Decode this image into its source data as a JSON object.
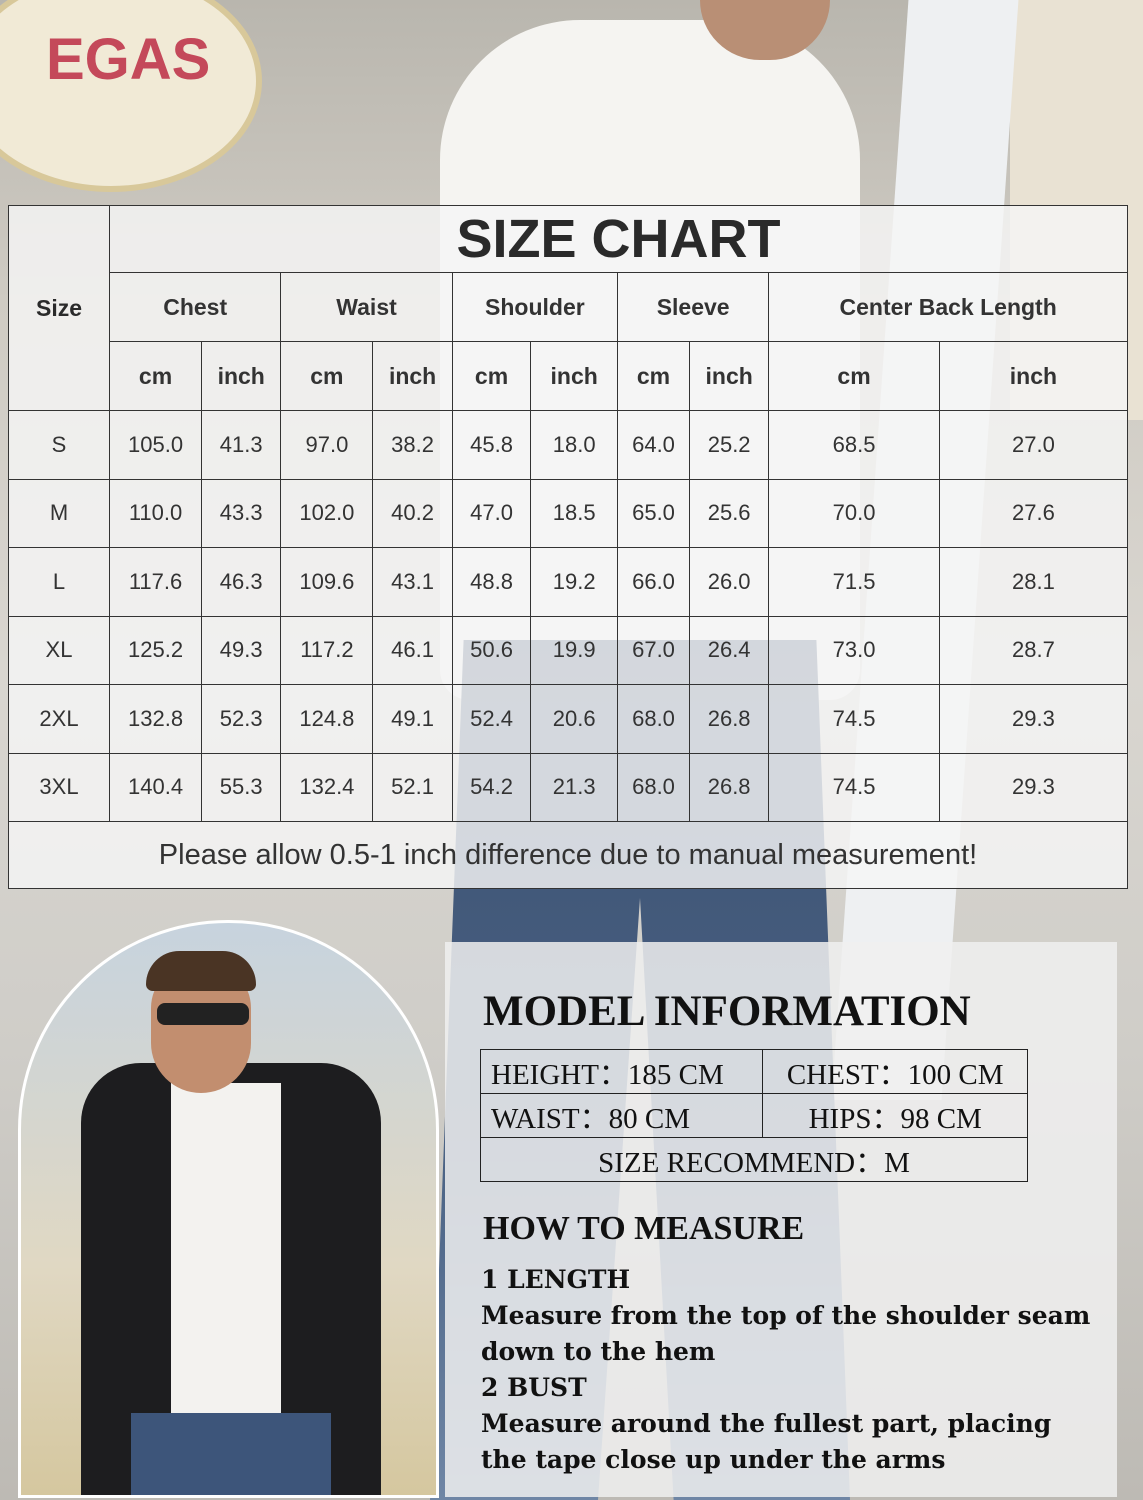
{
  "size_chart": {
    "title": "SIZE CHART",
    "size_header": "Size",
    "measurements": [
      "Chest",
      "Waist",
      "Shoulder",
      "Sleeve",
      "Center Back Length"
    ],
    "units": [
      "cm",
      "inch"
    ],
    "rows": [
      {
        "size": "S",
        "values": [
          "105.0",
          "41.3",
          "97.0",
          "38.2",
          "45.8",
          "18.0",
          "64.0",
          "25.2",
          "68.5",
          "27.0"
        ]
      },
      {
        "size": "M",
        "values": [
          "110.0",
          "43.3",
          "102.0",
          "40.2",
          "47.0",
          "18.5",
          "65.0",
          "25.6",
          "70.0",
          "27.6"
        ]
      },
      {
        "size": "L",
        "values": [
          "117.6",
          "46.3",
          "109.6",
          "43.1",
          "48.8",
          "19.2",
          "66.0",
          "26.0",
          "71.5",
          "28.1"
        ]
      },
      {
        "size": "XL",
        "values": [
          "125.2",
          "49.3",
          "117.2",
          "46.1",
          "50.6",
          "19.9",
          "67.0",
          "26.4",
          "73.0",
          "28.7"
        ]
      },
      {
        "size": "2XL",
        "values": [
          "132.8",
          "52.3",
          "124.8",
          "49.1",
          "52.4",
          "20.6",
          "68.0",
          "26.8",
          "74.5",
          "29.3"
        ]
      },
      {
        "size": "3XL",
        "values": [
          "140.4",
          "55.3",
          "132.4",
          "52.1",
          "54.2",
          "21.3",
          "68.0",
          "26.8",
          "74.5",
          "29.3"
        ]
      }
    ],
    "note": "Please allow 0.5-1 inch difference due to manual measurement!"
  },
  "model_info": {
    "title": "MODEL INFORMATION",
    "height": "HEIGHT：185 CM",
    "chest": "CHEST：100 CM",
    "waist": "WAIST：80   CM",
    "hips": "HIPS：98 CM",
    "size_recommend": "SIZE RECOMMEND：M"
  },
  "how_to_measure": {
    "title": "HOW TO MEASURE",
    "items": [
      {
        "heading": "1 LENGTH",
        "text": "Measure from the top of the shoulder seam down to the hem"
      },
      {
        "heading": "2 BUST",
        "text": "Measure around the fullest part, placing the tape close up under the arms"
      }
    ]
  },
  "background_sign_text": "EGAS"
}
